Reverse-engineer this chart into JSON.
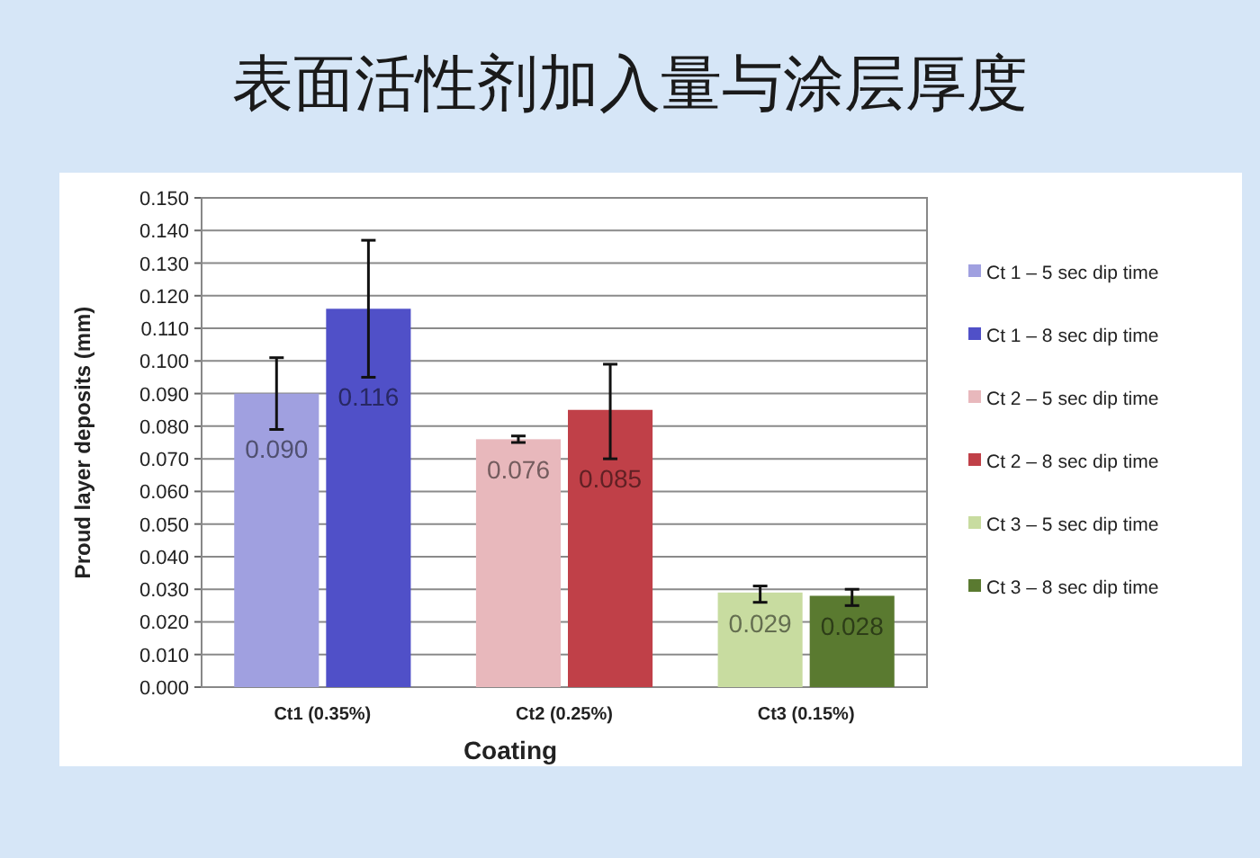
{
  "chart_data": {
    "type": "bar",
    "title": "表面活性剂加入量与涂层厚度",
    "xlabel": "Coating",
    "ylabel": "Proud layer deposits (mm)",
    "categories": [
      "Ct1 (0.35%)",
      "Ct2 (0.25%)",
      "Ct3 (0.15%)"
    ],
    "series": [
      {
        "name": "Ct 1 – 5 sec dip time",
        "color": "#a0a0e0",
        "values": [
          0.09,
          null,
          null
        ],
        "value_labels": [
          "0.090",
          null,
          null
        ],
        "errors": [
          [
            0.079,
            0.101
          ],
          null,
          null
        ]
      },
      {
        "name": "Ct 1 – 8 sec dip time",
        "color": "#5050c8",
        "values": [
          0.116,
          null,
          null
        ],
        "value_labels": [
          "0.116",
          null,
          null
        ],
        "errors": [
          [
            0.095,
            0.137
          ],
          null,
          null
        ]
      },
      {
        "name": "Ct 2 – 5 sec dip time",
        "color": "#e8b8bc",
        "values": [
          null,
          0.076,
          null
        ],
        "value_labels": [
          null,
          "0.076",
          null
        ],
        "errors": [
          null,
          [
            0.075,
            0.077
          ],
          null
        ]
      },
      {
        "name": "Ct 2 – 8 sec dip time",
        "color": "#c04048",
        "values": [
          null,
          0.085,
          null
        ],
        "value_labels": [
          null,
          "0.085",
          null
        ],
        "errors": [
          null,
          [
            0.07,
            0.099
          ],
          null
        ]
      },
      {
        "name": "Ct 3 – 5 sec dip time",
        "color": "#c8dca0",
        "values": [
          null,
          null,
          0.029
        ],
        "value_labels": [
          null,
          null,
          "0.029"
        ],
        "errors": [
          null,
          null,
          [
            0.026,
            0.031
          ]
        ]
      },
      {
        "name": "Ct 3 – 8 sec dip time",
        "color": "#5a7a30",
        "values": [
          null,
          null,
          0.028
        ],
        "value_labels": [
          null,
          null,
          "0.028"
        ],
        "errors": [
          null,
          null,
          [
            0.025,
            0.03
          ]
        ]
      }
    ],
    "ylim": [
      0,
      0.15
    ],
    "yticks": [
      {
        "value": 0,
        "label": "0.000"
      },
      {
        "value": 0.01,
        "label": "0.010"
      },
      {
        "value": 0.02,
        "label": "0.020"
      },
      {
        "value": 0.03,
        "label": "0.030"
      },
      {
        "value": 0.04,
        "label": "0.040"
      },
      {
        "value": 0.05,
        "label": "0.050"
      },
      {
        "value": 0.06,
        "label": "0.060"
      },
      {
        "value": 0.07,
        "label": "0.070"
      },
      {
        "value": 0.08,
        "label": "0.080"
      },
      {
        "value": 0.09,
        "label": "0.090"
      },
      {
        "value": 0.1,
        "label": "0.100"
      },
      {
        "value": 0.11,
        "label": "0.110"
      },
      {
        "value": 0.12,
        "label": "0.120"
      },
      {
        "value": 0.13,
        "label": "0.130"
      },
      {
        "value": 0.14,
        "label": "0.140"
      },
      {
        "value": 0.15,
        "label": "0.150"
      }
    ],
    "grid": "y",
    "legend": "right"
  }
}
